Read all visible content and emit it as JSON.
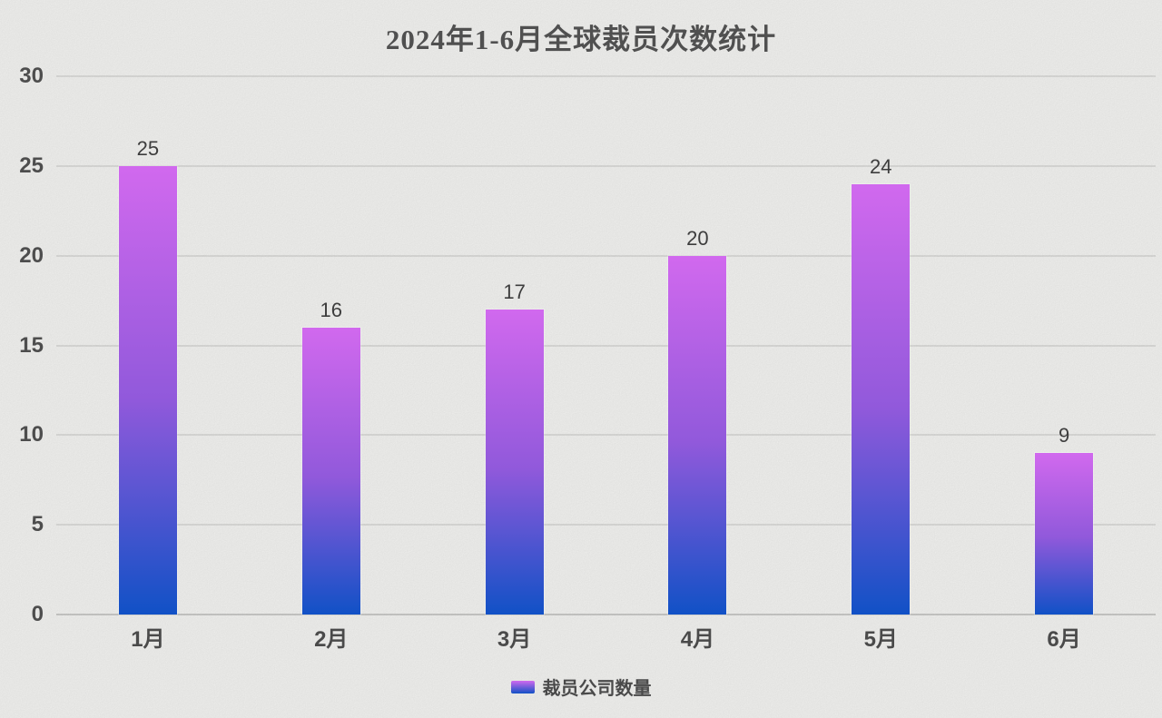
{
  "title": "2024年1-6月全球裁员次数统计",
  "chart_data": {
    "type": "bar",
    "title": "2024年1-6月全球裁员次数统计",
    "categories": [
      "1月",
      "2月",
      "3月",
      "4月",
      "5月",
      "6月"
    ],
    "values": [
      25,
      16,
      17,
      20,
      24,
      9
    ],
    "data_labels": [
      25,
      16,
      17,
      20,
      24,
      9
    ],
    "xlabel": "",
    "ylabel": "",
    "ylim": [
      0,
      30
    ],
    "yticks": [
      0,
      5,
      10,
      15,
      20,
      25,
      30
    ],
    "grid": "horizontal",
    "legend": {
      "label": "裁员公司数量",
      "position": "bottom"
    }
  },
  "colors": {
    "background": "#f3f3f1",
    "bar_gradient_top": "#d169ee",
    "bar_gradient_mid": "#9159db",
    "bar_gradient_bottom": "#1151c6",
    "gridline": "rgba(0,0,0,0.09)",
    "axis_text": "#4d4d4d",
    "value_label_text": "#3d3d3d",
    "title_text": "#505050",
    "legend_text": "#4a4a4a"
  }
}
